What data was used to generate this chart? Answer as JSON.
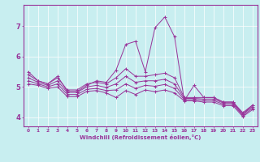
{
  "xlabel": "Windchill (Refroidissement éolien,°C)",
  "bg_color": "#c8eef0",
  "line_color": "#993399",
  "xlim": [
    -0.5,
    23.5
  ],
  "ylim": [
    3.7,
    7.7
  ],
  "xticks": [
    0,
    1,
    2,
    3,
    4,
    5,
    6,
    7,
    8,
    9,
    10,
    11,
    12,
    13,
    14,
    15,
    16,
    17,
    18,
    19,
    20,
    21,
    22,
    23
  ],
  "yticks": [
    4,
    5,
    6,
    7
  ],
  "lines": [
    {
      "x": [
        0,
        1,
        2,
        3,
        4,
        5,
        6,
        7,
        8,
        9,
        10,
        11,
        12,
        13,
        14,
        15,
        16,
        17,
        18,
        19,
        20,
        21,
        22,
        23
      ],
      "y": [
        5.5,
        5.2,
        5.1,
        5.35,
        4.85,
        4.85,
        5.05,
        5.2,
        5.15,
        5.55,
        6.4,
        6.5,
        5.5,
        6.95,
        7.3,
        6.65,
        4.55,
        5.05,
        4.65,
        4.65,
        4.5,
        4.5,
        4.1,
        4.4
      ]
    },
    {
      "x": [
        0,
        1,
        2,
        3,
        4,
        5,
        6,
        7,
        8,
        9,
        10,
        11,
        12,
        13,
        14,
        15,
        16,
        17,
        18,
        19,
        20,
        21,
        22,
        23
      ],
      "y": [
        5.4,
        5.2,
        5.1,
        5.3,
        4.9,
        4.9,
        5.1,
        5.15,
        5.1,
        5.3,
        5.6,
        5.35,
        5.35,
        5.4,
        5.45,
        5.3,
        4.65,
        4.65,
        4.65,
        4.65,
        4.5,
        4.5,
        4.15,
        4.4
      ]
    },
    {
      "x": [
        0,
        1,
        2,
        3,
        4,
        5,
        6,
        7,
        8,
        9,
        10,
        11,
        12,
        13,
        14,
        15,
        16,
        17,
        18,
        19,
        20,
        21,
        22,
        23
      ],
      "y": [
        5.3,
        5.15,
        5.05,
        5.2,
        4.82,
        4.82,
        5.0,
        5.05,
        4.98,
        5.1,
        5.35,
        5.15,
        5.2,
        5.2,
        5.25,
        5.1,
        4.62,
        4.62,
        4.6,
        4.6,
        4.47,
        4.47,
        4.1,
        4.35
      ]
    },
    {
      "x": [
        0,
        1,
        2,
        3,
        4,
        5,
        6,
        7,
        8,
        9,
        10,
        11,
        12,
        13,
        14,
        15,
        16,
        17,
        18,
        19,
        20,
        21,
        22,
        23
      ],
      "y": [
        5.2,
        5.1,
        5.0,
        5.1,
        4.75,
        4.75,
        4.92,
        4.95,
        4.88,
        4.9,
        5.1,
        4.95,
        5.05,
        5.02,
        5.08,
        4.95,
        4.58,
        4.58,
        4.55,
        4.55,
        4.43,
        4.43,
        4.06,
        4.3
      ]
    },
    {
      "x": [
        0,
        1,
        2,
        3,
        4,
        5,
        6,
        7,
        8,
        9,
        10,
        11,
        12,
        13,
        14,
        15,
        16,
        17,
        18,
        19,
        20,
        21,
        22,
        23
      ],
      "y": [
        5.1,
        5.05,
        4.95,
        5.0,
        4.68,
        4.68,
        4.85,
        4.88,
        4.8,
        4.65,
        4.88,
        4.75,
        4.9,
        4.84,
        4.9,
        4.8,
        4.54,
        4.54,
        4.5,
        4.5,
        4.38,
        4.38,
        4.02,
        4.25
      ]
    }
  ]
}
